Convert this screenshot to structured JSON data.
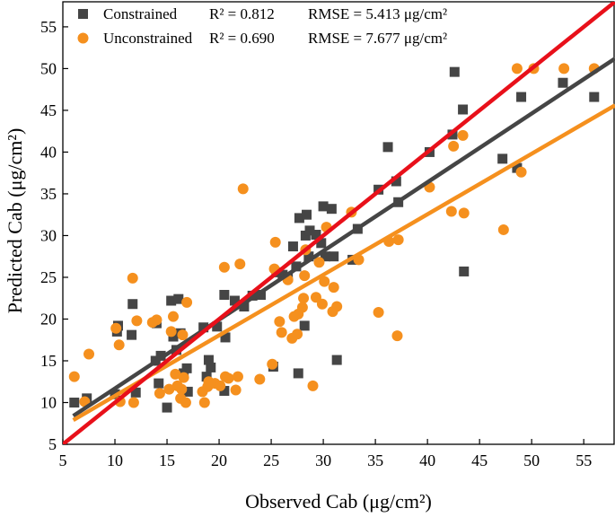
{
  "chart_data": {
    "type": "scatter",
    "title": "",
    "xlabel": "Observed Cab (μg/cm²)",
    "ylabel": "Predicted Cab (μg/cm²)",
    "xlim": [
      5,
      58
    ],
    "ylim": [
      5,
      58
    ],
    "xticks": [
      5,
      10,
      15,
      20,
      25,
      30,
      35,
      40,
      45,
      50,
      55
    ],
    "yticks": [
      5,
      10,
      15,
      20,
      25,
      30,
      35,
      40,
      45,
      50,
      55
    ],
    "one_to_one_line": {
      "color": "#e8101a",
      "from": [
        5,
        5
      ],
      "to": [
        58,
        58
      ]
    },
    "series": [
      {
        "name": "Constrained",
        "marker": "square",
        "color": "#454545",
        "fit_color": "#454545",
        "r2_text": "R² = 0.812",
        "rmse_text": "RMSE = 5.413 μg/cm²",
        "fit_line": {
          "from": [
            6,
            8.4
          ],
          "to": [
            58,
            51.2
          ]
        },
        "points": [
          [
            6.1,
            10.0
          ],
          [
            7.3,
            10.5
          ],
          [
            10.0,
            11.0
          ],
          [
            10.2,
            18.5
          ],
          [
            10.3,
            19.2
          ],
          [
            11.6,
            18.1
          ],
          [
            11.7,
            21.8
          ],
          [
            12.0,
            11.2
          ],
          [
            13.9,
            15.0
          ],
          [
            14.0,
            19.5
          ],
          [
            14.2,
            12.3
          ],
          [
            14.4,
            15.6
          ],
          [
            15.0,
            9.4
          ],
          [
            15.4,
            22.2
          ],
          [
            15.6,
            17.9
          ],
          [
            15.9,
            16.3
          ],
          [
            16.1,
            22.4
          ],
          [
            16.3,
            18.3
          ],
          [
            16.6,
            13.5
          ],
          [
            16.9,
            14.1
          ],
          [
            17.0,
            11.3
          ],
          [
            18.5,
            19.0
          ],
          [
            18.8,
            13.1
          ],
          [
            19.0,
            15.1
          ],
          [
            19.2,
            14.2
          ],
          [
            19.8,
            19.1
          ],
          [
            20.5,
            11.4
          ],
          [
            20.5,
            22.9
          ],
          [
            20.6,
            17.8
          ],
          [
            21.5,
            22.2
          ],
          [
            22.4,
            21.5
          ],
          [
            23.2,
            22.8
          ],
          [
            24.0,
            22.9
          ],
          [
            25.2,
            14.3
          ],
          [
            25.5,
            25.6
          ],
          [
            26.1,
            25.3
          ],
          [
            26.6,
            25.0
          ],
          [
            27.1,
            28.7
          ],
          [
            27.4,
            26.3
          ],
          [
            27.6,
            13.5
          ],
          [
            27.7,
            32.1
          ],
          [
            28.2,
            19.2
          ],
          [
            28.3,
            30.0
          ],
          [
            28.4,
            32.5
          ],
          [
            28.6,
            27.5
          ],
          [
            28.7,
            30.6
          ],
          [
            29.3,
            30.1
          ],
          [
            29.8,
            29.1
          ],
          [
            30.0,
            33.5
          ],
          [
            30.2,
            27.5
          ],
          [
            30.8,
            33.2
          ],
          [
            31.0,
            27.5
          ],
          [
            31.3,
            15.1
          ],
          [
            32.8,
            27.1
          ],
          [
            33.3,
            30.8
          ],
          [
            35.3,
            35.5
          ],
          [
            36.2,
            40.6
          ],
          [
            37.0,
            36.5
          ],
          [
            37.2,
            34.0
          ],
          [
            40.2,
            40.0
          ],
          [
            42.4,
            42.1
          ],
          [
            42.6,
            49.6
          ],
          [
            43.4,
            45.1
          ],
          [
            43.5,
            25.7
          ],
          [
            47.2,
            39.2
          ],
          [
            48.6,
            38.1
          ],
          [
            49.0,
            46.6
          ],
          [
            53.0,
            48.3
          ],
          [
            56.0,
            46.6
          ]
        ]
      },
      {
        "name": "Unconstrained",
        "marker": "circle",
        "color": "#f5901e",
        "fit_color": "#f5901e",
        "r2_text": "R² = 0.690",
        "rmse_text": "RMSE = 7.677 μg/cm²",
        "fit_line": {
          "from": [
            6,
            7.9
          ],
          "to": [
            58,
            45.6
          ]
        },
        "points": [
          [
            6.1,
            13.1
          ],
          [
            7.1,
            10.1
          ],
          [
            7.5,
            15.8
          ],
          [
            10.1,
            18.9
          ],
          [
            10.4,
            16.9
          ],
          [
            10.5,
            10.1
          ],
          [
            11.7,
            24.9
          ],
          [
            11.8,
            10.0
          ],
          [
            12.1,
            19.8
          ],
          [
            13.6,
            19.6
          ],
          [
            14.0,
            19.9
          ],
          [
            14.3,
            11.1
          ],
          [
            15.2,
            11.6
          ],
          [
            15.4,
            18.5
          ],
          [
            15.6,
            20.3
          ],
          [
            15.8,
            13.4
          ],
          [
            16.0,
            12.0
          ],
          [
            16.3,
            10.5
          ],
          [
            16.4,
            11.6
          ],
          [
            16.5,
            18.1
          ],
          [
            16.6,
            13.0
          ],
          [
            16.8,
            10.0
          ],
          [
            16.9,
            22.0
          ],
          [
            18.4,
            11.3
          ],
          [
            18.6,
            10.0
          ],
          [
            18.9,
            11.9
          ],
          [
            19.0,
            12.5
          ],
          [
            19.6,
            12.3
          ],
          [
            20.1,
            12.0
          ],
          [
            20.5,
            26.2
          ],
          [
            20.6,
            13.1
          ],
          [
            20.9,
            12.9
          ],
          [
            21.6,
            11.5
          ],
          [
            21.8,
            13.1
          ],
          [
            22.0,
            26.6
          ],
          [
            22.3,
            35.6
          ],
          [
            23.9,
            12.8
          ],
          [
            25.1,
            14.6
          ],
          [
            25.3,
            26.0
          ],
          [
            25.4,
            29.2
          ],
          [
            25.8,
            19.7
          ],
          [
            26.0,
            18.4
          ],
          [
            26.6,
            24.7
          ],
          [
            27.0,
            17.7
          ],
          [
            27.2,
            20.3
          ],
          [
            27.5,
            18.2
          ],
          [
            27.6,
            20.6
          ],
          [
            28.0,
            21.4
          ],
          [
            28.1,
            22.5
          ],
          [
            28.3,
            28.3
          ],
          [
            28.2,
            25.2
          ],
          [
            29.0,
            12.0
          ],
          [
            29.3,
            22.6
          ],
          [
            29.6,
            26.8
          ],
          [
            29.9,
            21.8
          ],
          [
            30.1,
            24.5
          ],
          [
            30.3,
            31.0
          ],
          [
            30.9,
            20.9
          ],
          [
            31.0,
            23.8
          ],
          [
            31.3,
            21.5
          ],
          [
            32.7,
            32.8
          ],
          [
            33.4,
            27.1
          ],
          [
            35.3,
            20.8
          ],
          [
            36.3,
            29.3
          ],
          [
            37.1,
            18.0
          ],
          [
            37.2,
            29.5
          ],
          [
            40.2,
            35.8
          ],
          [
            42.3,
            32.9
          ],
          [
            42.5,
            40.7
          ],
          [
            43.4,
            42.0
          ],
          [
            43.5,
            32.7
          ],
          [
            47.3,
            30.7
          ],
          [
            48.6,
            50.0
          ],
          [
            49.0,
            37.6
          ],
          [
            50.2,
            50.0
          ],
          [
            53.1,
            50.0
          ],
          [
            56.0,
            50.0
          ]
        ]
      }
    ]
  }
}
